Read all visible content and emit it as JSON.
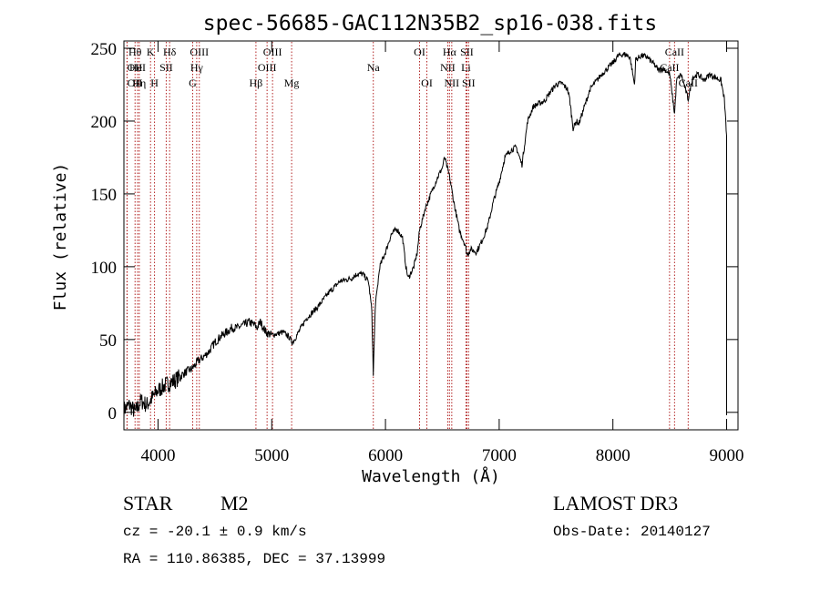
{
  "chart_data": {
    "type": "line",
    "title": "spec-56685-GAC112N35B2_sp16-038.fits",
    "xlabel": "Wavelength (Å)",
    "ylabel": "Flux (relative)",
    "xlim": [
      3700,
      9100
    ],
    "ylim": [
      -12,
      255
    ],
    "x_ticks": [
      4000,
      5000,
      6000,
      7000,
      8000,
      9000
    ],
    "y_ticks": [
      0,
      50,
      100,
      150,
      200,
      250
    ],
    "line_color": "#000000",
    "marker_color": "#b22222",
    "series": [
      {
        "name": "flux",
        "x": [
          3700,
          3750,
          3800,
          3850,
          3900,
          3950,
          4000,
          4050,
          4100,
          4150,
          4200,
          4250,
          4300,
          4350,
          4400,
          4450,
          4500,
          4550,
          4600,
          4650,
          4700,
          4750,
          4800,
          4850,
          4870,
          4900,
          4950,
          5000,
          5050,
          5100,
          5150,
          5180,
          5200,
          5300,
          5400,
          5500,
          5600,
          5700,
          5750,
          5800,
          5850,
          5880,
          5893,
          5910,
          5950,
          6000,
          6050,
          6100,
          6150,
          6180,
          6200,
          6250,
          6280,
          6300,
          6350,
          6400,
          6450,
          6500,
          6520,
          6563,
          6600,
          6650,
          6700,
          6720,
          6750,
          6800,
          6850,
          6900,
          6950,
          7000,
          7050,
          7100,
          7150,
          7200,
          7250,
          7300,
          7350,
          7400,
          7450,
          7500,
          7550,
          7600,
          7620,
          7650,
          7680,
          7700,
          7750,
          7800,
          7900,
          8000,
          8050,
          8100,
          8150,
          8190,
          8200,
          8250,
          8300,
          8350,
          8400,
          8450,
          8500,
          8542,
          8560,
          8600,
          8662,
          8700,
          8750,
          8800,
          8850,
          8900,
          8950,
          8980,
          9000
        ],
        "y": [
          2,
          5,
          0,
          8,
          5,
          10,
          15,
          18,
          20,
          22,
          25,
          28,
          30,
          35,
          38,
          42,
          48,
          52,
          55,
          58,
          58,
          60,
          62,
          60,
          58,
          62,
          55,
          53,
          54,
          55,
          52,
          48,
          50,
          64,
          72,
          82,
          90,
          92,
          95,
          95,
          90,
          70,
          25,
          72,
          100,
          110,
          122,
          126,
          120,
          100,
          92,
          100,
          110,
          125,
          140,
          150,
          160,
          168,
          175,
          162,
          145,
          125,
          115,
          108,
          112,
          110,
          118,
          128,
          145,
          158,
          175,
          180,
          182,
          170,
          200,
          210,
          212,
          214,
          220,
          225,
          226,
          222,
          215,
          195,
          200,
          198,
          210,
          222,
          232,
          240,
          245,
          246,
          244,
          225,
          242,
          245,
          244,
          240,
          235,
          236,
          232,
          205,
          228,
          232,
          215,
          230,
          232,
          228,
          232,
          230,
          228,
          215,
          190
        ]
      }
    ],
    "spectral_lines": [
      {
        "name": "Hθ",
        "wavelength": 3798,
        "row": 0
      },
      {
        "name": "OII",
        "wavelength": 3727,
        "row": 1
      },
      {
        "name": "OII",
        "wavelength": 3729,
        "row": 2
      },
      {
        "name": "HeI",
        "wavelength": 3820,
        "row": 1
      },
      {
        "name": "Hη",
        "wavelength": 3835,
        "row": 2
      },
      {
        "name": "K",
        "wavelength": 3934,
        "row": 0
      },
      {
        "name": "H",
        "wavelength": 3969,
        "row": 2
      },
      {
        "name": "SII",
        "wavelength": 4072,
        "row": 1
      },
      {
        "name": "Hδ",
        "wavelength": 4102,
        "row": 0
      },
      {
        "name": "OIII",
        "wavelength": 4363,
        "row": 0
      },
      {
        "name": "Hγ",
        "wavelength": 4340,
        "row": 1
      },
      {
        "name": "G",
        "wavelength": 4305,
        "row": 2
      },
      {
        "name": "Hβ",
        "wavelength": 4861,
        "row": 2
      },
      {
        "name": "OIII",
        "wavelength": 4959,
        "row": 1
      },
      {
        "name": "OIII",
        "wavelength": 5007,
        "row": 0
      },
      {
        "name": "Mg",
        "wavelength": 5175,
        "row": 2
      },
      {
        "name": "Na",
        "wavelength": 5893,
        "row": 1
      },
      {
        "name": "OI",
        "wavelength": 6300,
        "row": 0
      },
      {
        "name": "OI",
        "wavelength": 6364,
        "row": 2
      },
      {
        "name": "Hα",
        "wavelength": 6563,
        "row": 0
      },
      {
        "name": "NII",
        "wavelength": 6548,
        "row": 1
      },
      {
        "name": "NII",
        "wavelength": 6583,
        "row": 2
      },
      {
        "name": "SII",
        "wavelength": 6716,
        "row": 0
      },
      {
        "name": "Li",
        "wavelength": 6708,
        "row": 1
      },
      {
        "name": "SII",
        "wavelength": 6731,
        "row": 2
      },
      {
        "name": "CaII",
        "wavelength": 8542,
        "row": 0
      },
      {
        "name": "CaII",
        "wavelength": 8498,
        "row": 1
      },
      {
        "name": "CaII",
        "wavelength": 8662,
        "row": 2
      }
    ]
  },
  "info": {
    "class": "STAR",
    "subclass": "M2",
    "survey": "LAMOST DR3",
    "redshift": "cz = -20.1 ± 0.9 km/s",
    "obs_date": "Obs-Date: 20140127",
    "coords": "RA = 110.86385, DEC =  37.13999"
  }
}
